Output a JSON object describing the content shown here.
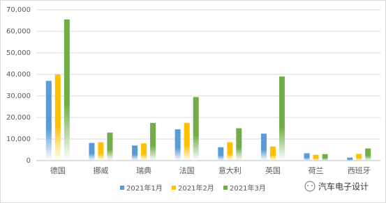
{
  "chart_data": {
    "type": "bar",
    "categories": [
      "德国",
      "挪威",
      "瑞典",
      "法国",
      "意大利",
      "英国",
      "荷兰",
      "西班牙"
    ],
    "series": [
      {
        "name": "2021年1月",
        "color": "#5b9bd5",
        "values": [
          37000,
          8200,
          7000,
          14500,
          6200,
          12500,
          3400,
          1400
        ]
      },
      {
        "name": "2021年2月",
        "color": "#ffc000",
        "values": [
          40000,
          8500,
          8000,
          17500,
          8500,
          6500,
          2700,
          3100
        ]
      },
      {
        "name": "2021年3月",
        "color": "#70ad47",
        "values": [
          65500,
          13000,
          17500,
          29500,
          15000,
          39000,
          3000,
          5600
        ]
      }
    ],
    "ylim": [
      0,
      70000
    ],
    "yticks": [
      0,
      {
        "value": 10000,
        "label": "10,000"
      },
      {
        "value": 20000,
        "label": "20,000"
      },
      {
        "value": 30000,
        "label": "30,000"
      },
      {
        "value": 40000,
        "label": "40,000"
      },
      {
        "value": 50000,
        "label": "50,000"
      },
      {
        "value": 60000,
        "label": "60,000"
      },
      {
        "value": 70000,
        "label": "70,000"
      }
    ],
    "grid": true,
    "legend": "bottom",
    "watermark": "汽车电子设计"
  }
}
